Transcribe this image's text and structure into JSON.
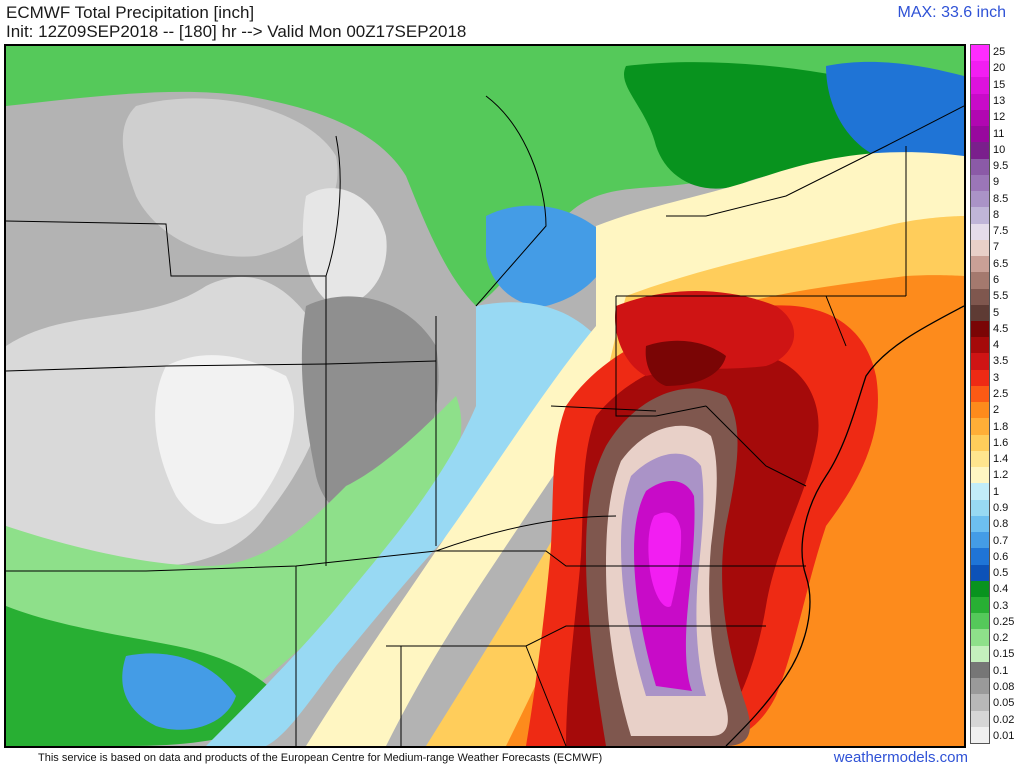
{
  "header": {
    "title": "ECMWF Total Precipitation [inch]",
    "subtitle": "Init: 12Z09SEP2018 -- [180] hr --> Valid Mon 00Z17SEP2018",
    "max_label": "MAX: 33.6 inch"
  },
  "colorbar": {
    "levels": [
      {
        "label": "25",
        "color": "#ff2cff"
      },
      {
        "label": "20",
        "color": "#f21ef2"
      },
      {
        "label": "15",
        "color": "#dd12dd"
      },
      {
        "label": "13",
        "color": "#c80bc8"
      },
      {
        "label": "12",
        "color": "#b107b1"
      },
      {
        "label": "11",
        "color": "#98089e"
      },
      {
        "label": "10",
        "color": "#7a1f8c"
      },
      {
        "label": "9.5",
        "color": "#8b5aa7"
      },
      {
        "label": "9",
        "color": "#9b76b8"
      },
      {
        "label": "8.5",
        "color": "#aa93c7"
      },
      {
        "label": "8",
        "color": "#c0b5d8"
      },
      {
        "label": "7.5",
        "color": "#e5dcea"
      },
      {
        "label": "7",
        "color": "#e8d0c8"
      },
      {
        "label": "6.5",
        "color": "#c9a096"
      },
      {
        "label": "6",
        "color": "#a4796e"
      },
      {
        "label": "5.5",
        "color": "#7f574e"
      },
      {
        "label": "5",
        "color": "#5e3b34"
      },
      {
        "label": "4.5",
        "color": "#7a0505"
      },
      {
        "label": "4",
        "color": "#a50a0a"
      },
      {
        "label": "3.5",
        "color": "#cf1414"
      },
      {
        "label": "3",
        "color": "#ee2a14"
      },
      {
        "label": "2.5",
        "color": "#fb5a14"
      },
      {
        "label": "2",
        "color": "#fd8b1c"
      },
      {
        "label": "1.8",
        "color": "#ffae37"
      },
      {
        "label": "1.6",
        "color": "#ffcd5b"
      },
      {
        "label": "1.4",
        "color": "#ffe58e"
      },
      {
        "label": "1.2",
        "color": "#fff6c2"
      },
      {
        "label": "1",
        "color": "#c2ecf8"
      },
      {
        "label": "0.9",
        "color": "#98d9f3"
      },
      {
        "label": "0.8",
        "color": "#6dbff0"
      },
      {
        "label": "0.7",
        "color": "#449ce6"
      },
      {
        "label": "0.6",
        "color": "#1f74d6"
      },
      {
        "label": "0.5",
        "color": "#0d52b8"
      },
      {
        "label": "0.4",
        "color": "#08931e"
      },
      {
        "label": "0.3",
        "color": "#28af33"
      },
      {
        "label": "0.25",
        "color": "#55c95a"
      },
      {
        "label": "0.2",
        "color": "#8ee08a"
      },
      {
        "label": "0.15",
        "color": "#c4f0bd"
      },
      {
        "label": "0.1",
        "color": "#767676"
      },
      {
        "label": "0.08",
        "color": "#9a9a9a"
      },
      {
        "label": "0.05",
        "color": "#b8b8b8"
      },
      {
        "label": "0.02",
        "color": "#d6d6d6"
      },
      {
        "label": "0.01",
        "color": "#f0f0f0"
      }
    ]
  },
  "footer": {
    "note": "This service is based on data and products of the European Centre for Medium-range Weather Forecasts (ECMWF)",
    "brand": "weathermodels.com"
  }
}
